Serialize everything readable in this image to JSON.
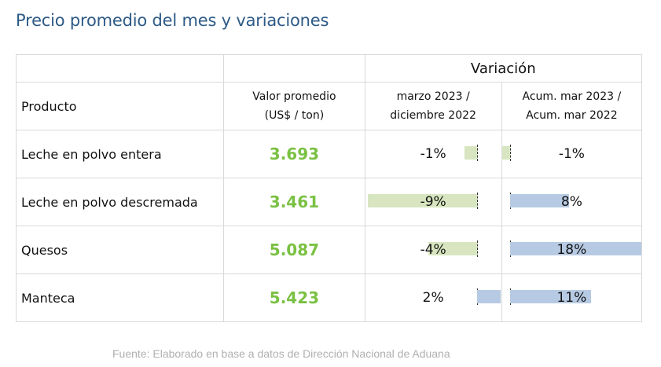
{
  "title": "Precio promedio del mes y variaciones",
  "header": {
    "variacion": "Variación",
    "producto": "Producto",
    "valor_line1": "Valor promedio",
    "valor_line2": "(US$ / ton)",
    "var1_line1": "marzo 2023 /",
    "var1_line2": "diciembre 2022",
    "var2_line1": "Acum. mar 2023 /",
    "var2_line2": "Acum. mar 2022"
  },
  "chart_data": {
    "type": "table",
    "columns": [
      "Producto",
      "Valor promedio (US$ / ton)",
      "marzo 2023 / diciembre 2022",
      "Acum. mar 2023 / Acum. mar 2022"
    ],
    "rows": [
      {
        "producto": "Leche en polvo entera",
        "valor": "3.693",
        "var_mes": -1,
        "var_mes_label": "-1%",
        "var_acum": -1,
        "var_acum_label": "-1%"
      },
      {
        "producto": "Leche en polvo descremada",
        "valor": "3.461",
        "var_mes": -9,
        "var_mes_label": "-9%",
        "var_acum": 8,
        "var_acum_label": "8%"
      },
      {
        "producto": "Quesos",
        "valor": "5.087",
        "var_mes": -4,
        "var_mes_label": "-4%",
        "var_acum": 18,
        "var_acum_label": "18%"
      },
      {
        "producto": "Manteca",
        "valor": "5.423",
        "var_mes": 2,
        "var_mes_label": "2%",
        "var_acum": 11,
        "var_acum_label": "11%"
      }
    ],
    "colors": {
      "negative_bar": "#d7e6c0",
      "positive_bar": "#b7cae3",
      "value_text": "#7ac143"
    }
  },
  "source": "Fuente: Elaborado en base a datos de Dirección Nacional de Aduana"
}
